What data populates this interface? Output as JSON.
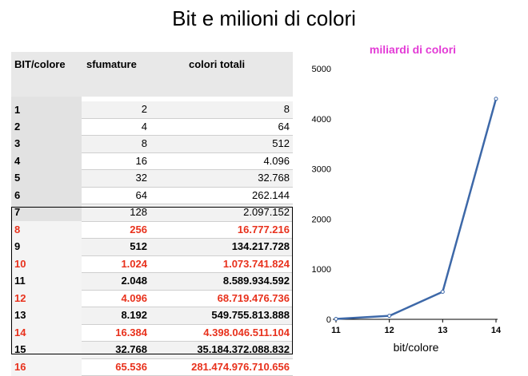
{
  "title": "Bit e milioni di colori",
  "table": {
    "headers": [
      "BIT/colore",
      "sfumature",
      "colori totali"
    ],
    "rows": [
      {
        "bit": "1",
        "shades": "2",
        "total": "8",
        "highlight": false,
        "color": "#000000"
      },
      {
        "bit": "2",
        "shades": "4",
        "total": "64",
        "highlight": false,
        "color": "#000000"
      },
      {
        "bit": "3",
        "shades": "8",
        "total": "512",
        "highlight": false,
        "color": "#000000"
      },
      {
        "bit": "4",
        "shades": "16",
        "total": "4.096",
        "highlight": false,
        "color": "#000000"
      },
      {
        "bit": "5",
        "shades": "32",
        "total": "32.768",
        "highlight": false,
        "color": "#000000"
      },
      {
        "bit": "6",
        "shades": "64",
        "total": "262.144",
        "highlight": false,
        "color": "#000000"
      },
      {
        "bit": "7",
        "shades": "128",
        "total": "2.097.152",
        "highlight": false,
        "color": "#000000"
      },
      {
        "bit": "8",
        "shades": "256",
        "total": "16.777.216",
        "highlight": true,
        "color": "#e8311c"
      },
      {
        "bit": "9",
        "shades": "512",
        "total": "134.217.728",
        "highlight": true,
        "color": "#000000"
      },
      {
        "bit": "10",
        "shades": "1.024",
        "total": "1.073.741.824",
        "highlight": true,
        "color": "#e8311c"
      },
      {
        "bit": "11",
        "shades": "2.048",
        "total": "8.589.934.592",
        "highlight": true,
        "color": "#000000"
      },
      {
        "bit": "12",
        "shades": "4.096",
        "total": "68.719.476.736",
        "highlight": true,
        "color": "#e8311c"
      },
      {
        "bit": "13",
        "shades": "8.192",
        "total": "549.755.813.888",
        "highlight": true,
        "color": "#000000"
      },
      {
        "bit": "14",
        "shades": "16.384",
        "total": "4.398.046.511.104",
        "highlight": true,
        "color": "#e8311c"
      },
      {
        "bit": "15",
        "shades": "32.768",
        "total": "35.184.372.088.832",
        "highlight": true,
        "color": "#000000"
      },
      {
        "bit": "16",
        "shades": "65.536",
        "total": "281.474.976.710.656",
        "highlight": true,
        "color": "#e8311c"
      }
    ]
  },
  "chart_data": {
    "type": "line",
    "title": "miliardi di colori",
    "title_color": "#e33bd6",
    "xlabel": "bit/colore",
    "ylabel": "",
    "x": [
      11,
      12,
      13,
      14
    ],
    "y_ticks": [
      0,
      1000,
      2000,
      3000,
      4000,
      5000
    ],
    "ylim": [
      0,
      5000
    ],
    "series": [
      {
        "values": [
          8.59,
          68.72,
          549.76,
          4398.05
        ],
        "color": "#3d68a8"
      }
    ],
    "grid": false
  }
}
